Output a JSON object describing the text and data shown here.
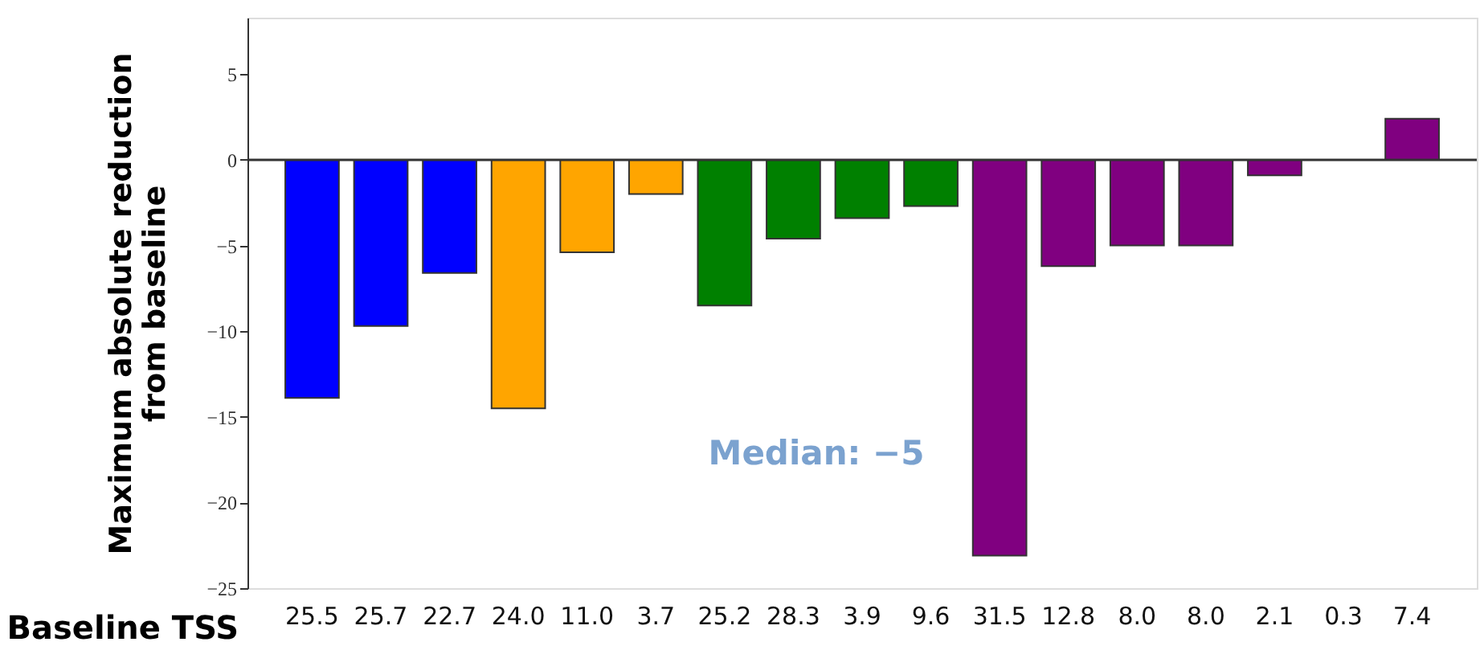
{
  "chart_data": {
    "type": "bar",
    "xlabel": "Baseline TSS",
    "ylabel": "Maximum absolute reduction\nfrom baseline",
    "categories": [
      "25.5",
      "25.7",
      "22.7",
      "24.0",
      "11.0",
      "3.7",
      "25.2",
      "28.3",
      "3.9",
      "9.6",
      "31.5",
      "12.8",
      "8.0",
      "8.0",
      "2.1",
      "0.3",
      "7.4"
    ],
    "values": [
      -13.9,
      -9.7,
      -6.6,
      -14.5,
      -5.4,
      -2.0,
      -8.5,
      -4.6,
      -3.4,
      -2.7,
      -23.1,
      -6.2,
      -5.0,
      -5.0,
      -0.9,
      null,
      2.4
    ],
    "colors": [
      "#0000ff",
      "#0000ff",
      "#0000ff",
      "#ffa500",
      "#ffa500",
      "#ffa500",
      "#008000",
      "#008000",
      "#008000",
      "#008000",
      "#800080",
      "#800080",
      "#800080",
      "#800080",
      "#800080",
      "#800080",
      "#800080"
    ],
    "ylim": [
      -25,
      8.3
    ],
    "yticks": [
      -25,
      -20,
      -15,
      -10,
      -5,
      0,
      5
    ],
    "ref_lines": [
      {
        "axis": "y",
        "value": 0,
        "color": "#333333"
      }
    ],
    "annotations": [
      "Median: −5"
    ],
    "grid": false
  }
}
